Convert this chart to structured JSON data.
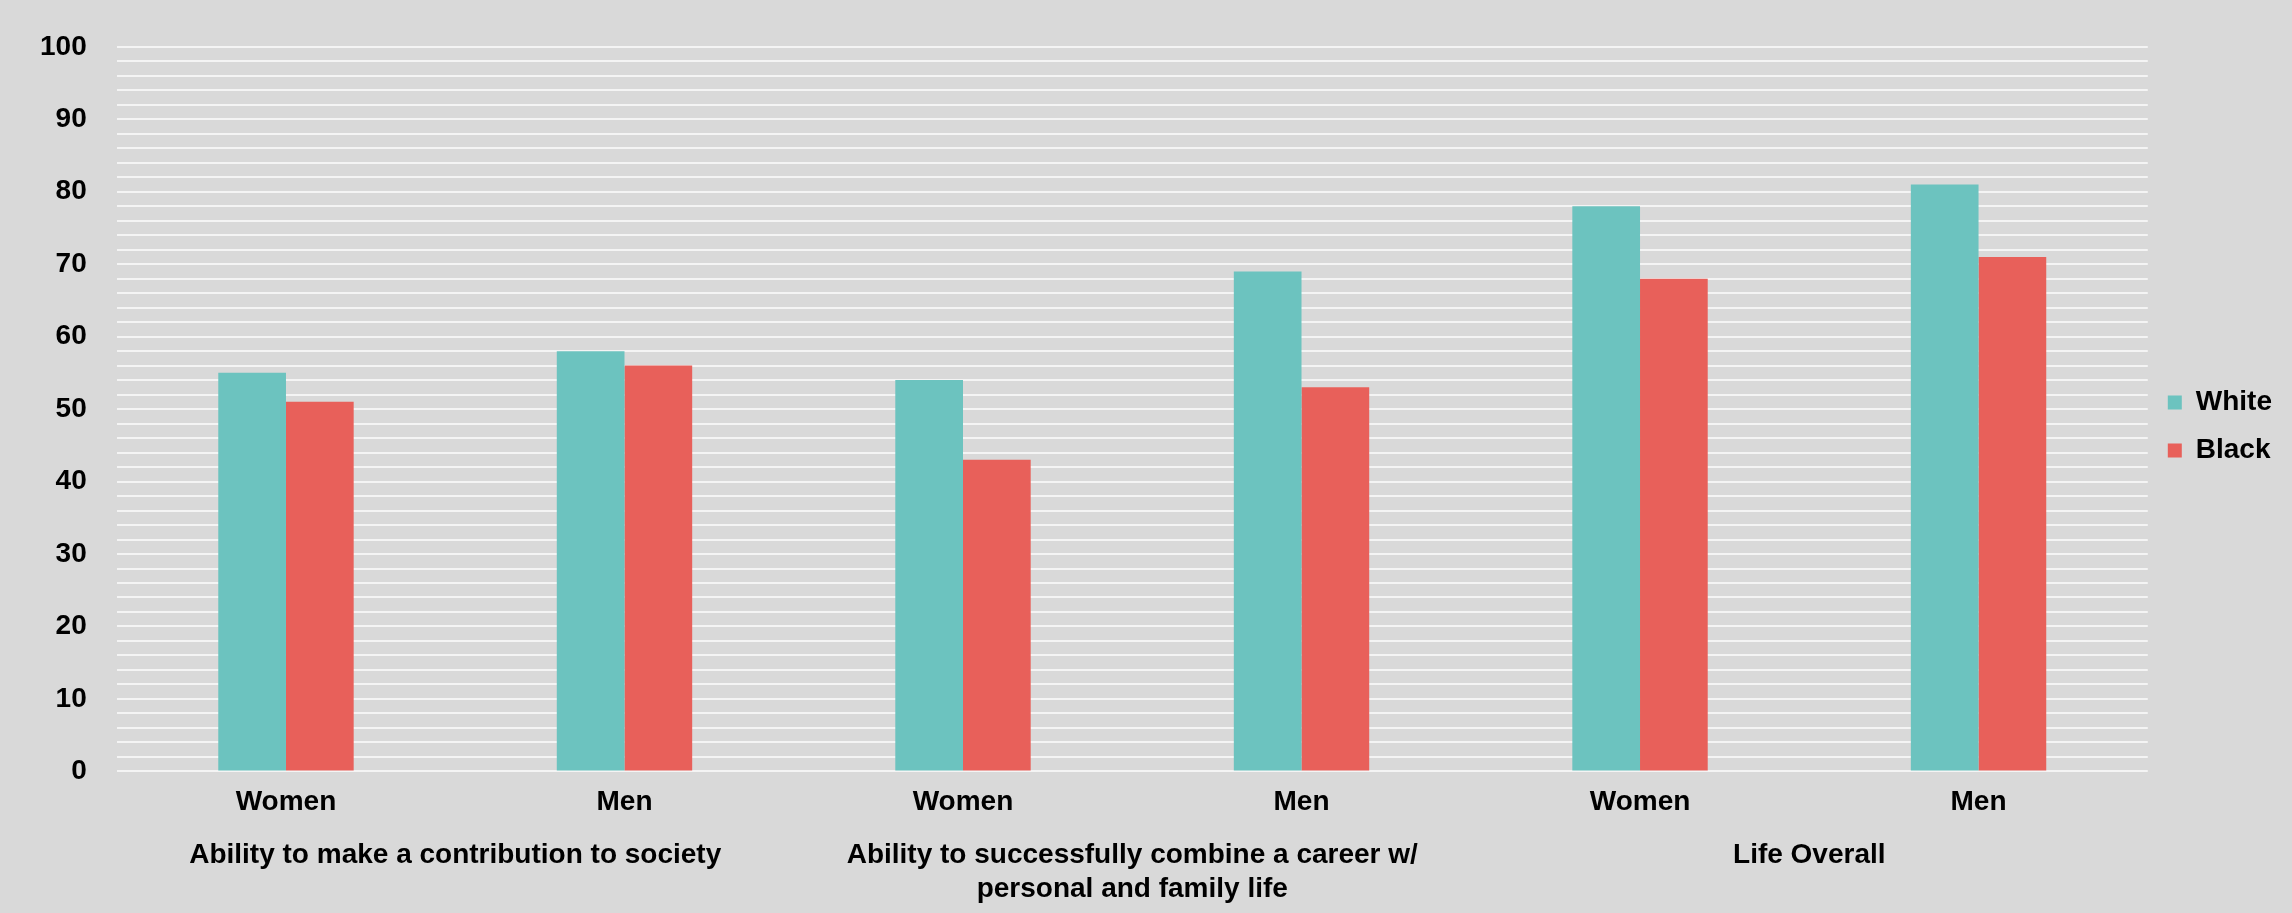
{
  "chart_data": {
    "type": "bar",
    "categories": [
      "Women",
      "Men",
      "Women",
      "Men",
      "Women",
      "Men"
    ],
    "series": [
      {
        "name": "White",
        "color": "#6cc3bf",
        "values": [
          55,
          58,
          54,
          69,
          78,
          81
        ]
      },
      {
        "name": "Black",
        "color": "#e8605a",
        "values": [
          51,
          56,
          43,
          53,
          68,
          71
        ]
      }
    ],
    "ylim": [
      0,
      100
    ],
    "yticks": [
      0,
      {
        "value": 2,
        "label": null
      },
      {
        "value": 4,
        "label": null
      },
      {
        "value": 6,
        "label": null
      },
      {
        "value": 8,
        "label": null
      },
      10,
      {
        "value": 12,
        "label": null
      },
      {
        "value": 14,
        "label": null
      },
      {
        "value": 16,
        "label": null
      },
      {
        "value": 18,
        "label": null
      },
      20,
      {
        "value": 22,
        "label": null
      },
      {
        "value": 24,
        "label": null
      },
      {
        "value": 26,
        "label": null
      },
      {
        "value": 28,
        "label": null
      },
      30,
      {
        "value": 32,
        "label": null
      },
      {
        "value": 34,
        "label": null
      },
      {
        "value": 36,
        "label": null
      },
      {
        "value": 38,
        "label": null
      },
      40,
      {
        "value": 42,
        "label": null
      },
      {
        "value": 44,
        "label": null
      },
      {
        "value": 46,
        "label": null
      },
      {
        "value": 48,
        "label": null
      },
      50,
      {
        "value": 52,
        "label": null
      },
      {
        "value": 54,
        "label": null
      },
      {
        "value": 56,
        "label": null
      },
      {
        "value": 58,
        "label": null
      },
      60,
      {
        "value": 62,
        "label": null
      },
      {
        "value": 64,
        "label": null
      },
      {
        "value": 66,
        "label": null
      },
      {
        "value": 68,
        "label": null
      },
      70,
      {
        "value": 72,
        "label": null
      },
      {
        "value": 74,
        "label": null
      },
      {
        "value": 76,
        "label": null
      },
      {
        "value": 78,
        "label": null
      },
      80,
      {
        "value": 82,
        "label": null
      },
      {
        "value": 84,
        "label": null
      },
      {
        "value": 86,
        "label": null
      },
      {
        "value": 88,
        "label": null
      },
      90,
      {
        "value": 92,
        "label": null
      },
      {
        "value": 94,
        "label": null
      },
      {
        "value": 96,
        "label": null
      },
      {
        "value": 98,
        "label": null
      },
      100
    ],
    "grid": "y",
    "legend": "right",
    "annotations": [
      "Ability to make a contribution to society",
      "Ability to successfully combine a career w/ personal and family life",
      "Life Overall"
    ]
  }
}
